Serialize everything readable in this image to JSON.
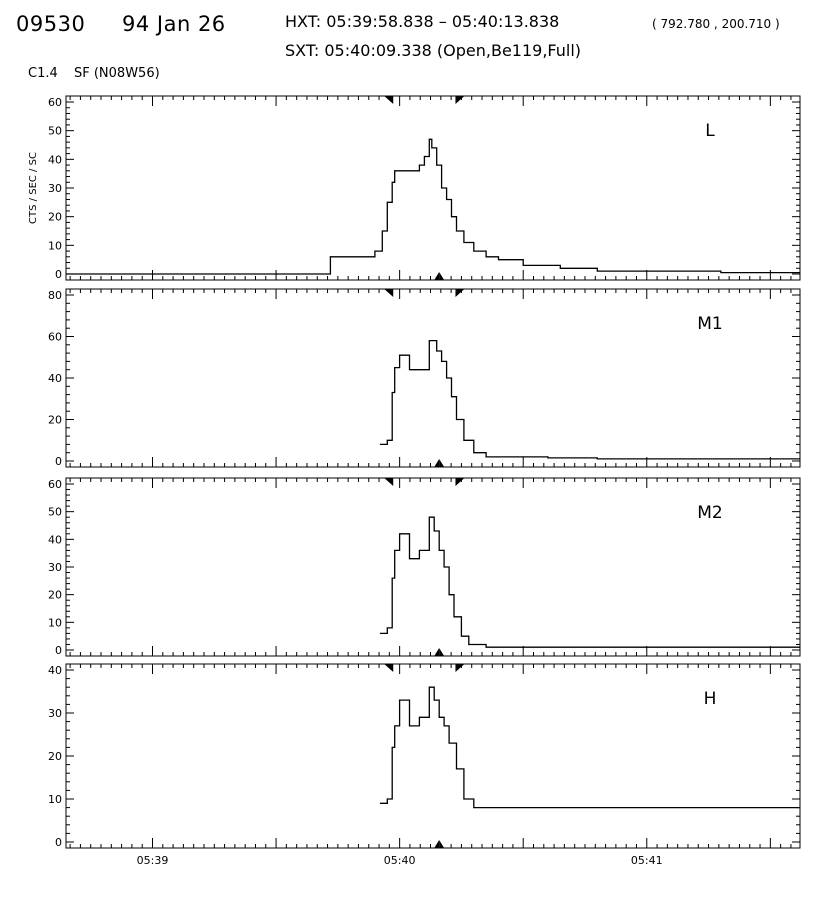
{
  "header": {
    "event": "09530",
    "date": "94 Jan 26",
    "hxt": "HXT: 05:39:58.838 – 05:40:13.838",
    "coords": "( 792.780 , 200.710 )",
    "sxt": "SXT: 05:40:09.338 (Open,Be119,Full)",
    "goes_class": "C1.4",
    "location": "SF (N08W56)"
  },
  "chart_data": {
    "type": "line",
    "ylabel": "CTS / SEC / SC",
    "xlim_minutes": [
      38.65,
      41.62
    ],
    "x_ticks": [
      "05:39",
      "05:40",
      "05:41"
    ],
    "x_tick_values": [
      39,
      40,
      41
    ],
    "markers": {
      "top_triangles_minutes": [
        39.97,
        40.23
      ],
      "bottom_marker_minutes": 40.16
    },
    "panels": [
      {
        "name": "L",
        "ylim": [
          0,
          60
        ],
        "yticks": [
          0,
          10,
          20,
          30,
          40,
          50,
          60
        ],
        "x": [
          38.65,
          39.72,
          39.9,
          39.93,
          39.95,
          39.97,
          39.98,
          40.0,
          40.05,
          40.08,
          40.1,
          40.12,
          40.13,
          40.15,
          40.17,
          40.19,
          40.21,
          40.23,
          40.26,
          40.3,
          40.35,
          40.4,
          40.5,
          40.65,
          40.8,
          41.0,
          41.3,
          41.62
        ],
        "values": [
          0,
          6,
          8,
          15,
          25,
          32,
          36,
          36,
          36,
          38,
          41,
          47,
          44,
          38,
          30,
          26,
          20,
          15,
          11,
          8,
          6,
          5,
          3,
          2,
          1,
          1,
          0.5,
          0.5
        ]
      },
      {
        "name": "M1",
        "ylim": [
          0,
          80
        ],
        "yticks": [
          0,
          20,
          40,
          60,
          80
        ],
        "x": [
          39.92,
          39.95,
          39.97,
          39.98,
          40.0,
          40.04,
          40.08,
          40.12,
          40.15,
          40.17,
          40.19,
          40.21,
          40.23,
          40.26,
          40.3,
          40.35,
          40.45,
          40.6,
          40.8,
          41.0,
          41.3,
          41.62
        ],
        "values": [
          8,
          10,
          33,
          45,
          51,
          44,
          44,
          58,
          53,
          48,
          40,
          31,
          20,
          10,
          4,
          2,
          2,
          1.5,
          1,
          1,
          1,
          1
        ]
      },
      {
        "name": "M2",
        "ylim": [
          0,
          60
        ],
        "yticks": [
          0,
          10,
          20,
          30,
          40,
          50,
          60
        ],
        "x": [
          39.92,
          39.95,
          39.97,
          39.98,
          40.0,
          40.04,
          40.08,
          40.12,
          40.14,
          40.16,
          40.18,
          40.2,
          40.22,
          40.25,
          40.28,
          40.35,
          40.5,
          40.8,
          41.0,
          41.3,
          41.62
        ],
        "values": [
          6,
          8,
          26,
          36,
          42,
          33,
          36,
          48,
          43,
          36,
          30,
          20,
          12,
          5,
          2,
          1,
          1,
          1,
          1,
          1,
          1
        ]
      },
      {
        "name": "H",
        "ylim": [
          0,
          40
        ],
        "yticks": [
          0,
          10,
          20,
          30,
          40
        ],
        "x": [
          39.92,
          39.95,
          39.97,
          39.98,
          40.0,
          40.04,
          40.08,
          40.12,
          40.14,
          40.16,
          40.18,
          40.2,
          40.23,
          40.26,
          40.3,
          40.5,
          40.8,
          41.0,
          41.3,
          41.62
        ],
        "values": [
          9,
          10,
          22,
          27,
          33,
          27,
          29,
          36,
          33,
          29,
          27,
          23,
          17,
          10,
          8,
          8,
          8,
          8,
          8,
          8
        ]
      }
    ]
  }
}
